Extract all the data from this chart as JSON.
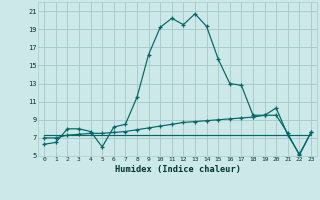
{
  "xlabel": "Humidex (Indice chaleur)",
  "bg_color": "#cce8e8",
  "grid_color": "#aacccc",
  "line_color": "#006666",
  "xlim": [
    -0.5,
    23.5
  ],
  "ylim": [
    5,
    22
  ],
  "yticks": [
    5,
    7,
    9,
    11,
    13,
    15,
    17,
    19,
    21
  ],
  "xticks": [
    0,
    1,
    2,
    3,
    4,
    5,
    6,
    7,
    8,
    9,
    10,
    11,
    12,
    13,
    14,
    15,
    16,
    17,
    18,
    19,
    20,
    21,
    22,
    23
  ],
  "series1_x": [
    0,
    1,
    2,
    3,
    4,
    5,
    6,
    7,
    8,
    9,
    10,
    11,
    12,
    13,
    14,
    15,
    16,
    17,
    18,
    19,
    20,
    21,
    22,
    23
  ],
  "series1_y": [
    6.3,
    6.5,
    8.0,
    8.0,
    7.7,
    6.0,
    8.2,
    8.5,
    11.5,
    16.2,
    19.2,
    20.2,
    19.5,
    20.7,
    19.3,
    15.7,
    13.0,
    12.8,
    9.5,
    9.5,
    10.3,
    7.3,
    5.2,
    7.6
  ],
  "series2_x": [
    0,
    1,
    2,
    3,
    4,
    5,
    6,
    7,
    8,
    9,
    10,
    11,
    12,
    13,
    14,
    15,
    16,
    17,
    18,
    19,
    20,
    21,
    22,
    23
  ],
  "series2_y": [
    7.0,
    7.0,
    7.3,
    7.4,
    7.5,
    7.5,
    7.6,
    7.7,
    7.9,
    8.1,
    8.3,
    8.5,
    8.7,
    8.8,
    8.9,
    9.0,
    9.1,
    9.2,
    9.3,
    9.5,
    9.5,
    7.5,
    5.1,
    7.6
  ],
  "series3_x": [
    0,
    1,
    2,
    3,
    4,
    5,
    6,
    7,
    8,
    9,
    10,
    11,
    12,
    13,
    14,
    15,
    16,
    17,
    18,
    19,
    20,
    21,
    22,
    23
  ],
  "series3_y": [
    7.3,
    7.3,
    7.3,
    7.3,
    7.3,
    7.3,
    7.3,
    7.3,
    7.3,
    7.3,
    7.3,
    7.3,
    7.3,
    7.3,
    7.3,
    7.3,
    7.3,
    7.3,
    7.3,
    7.3,
    7.3,
    7.3,
    7.3,
    7.3
  ]
}
